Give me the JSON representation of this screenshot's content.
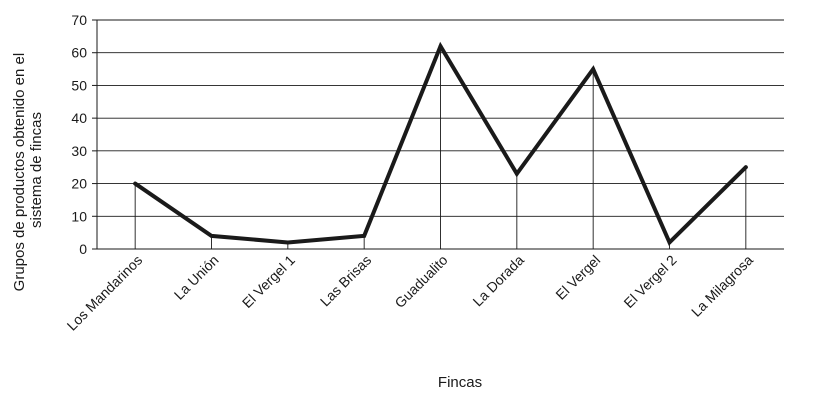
{
  "chart_data": {
    "type": "line",
    "title": "",
    "xlabel": "Fincas",
    "ylabel_lines": [
      "Grupos de productos obtenido en el",
      "sistema de fincas"
    ],
    "categories": [
      "Los Mandarinos",
      "La Unión",
      "El Vergel 1",
      "Las Brisas",
      "Guadualito",
      "La Dorada",
      "El Vergel",
      "El Vergel 2",
      "La Milagrosa"
    ],
    "values": [
      20,
      4,
      2,
      4,
      62,
      23,
      55,
      2,
      25
    ],
    "ylim": [
      0,
      70
    ],
    "yticks": [
      0,
      10,
      20,
      30,
      40,
      50,
      60,
      70
    ],
    "grid": "horizontal",
    "drop_lines": true,
    "legend": "none",
    "colors": {
      "line": "#1a1a1a",
      "grid": "#1a1a1a",
      "text": "#1a1a1a"
    }
  }
}
